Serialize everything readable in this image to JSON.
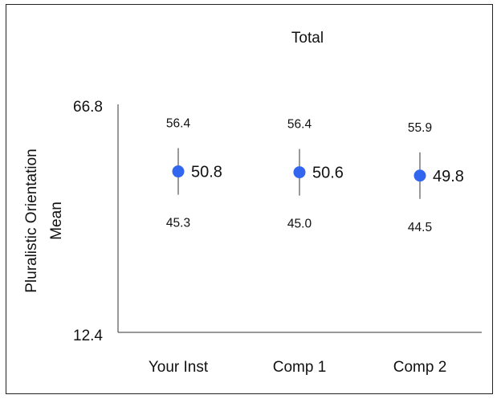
{
  "chart_data": {
    "type": "scatter",
    "title": "Total",
    "ylabel_line1": "Pluralistic Orientation",
    "ylabel_line2": "Mean",
    "ylim": [
      12.4,
      66.8
    ],
    "ytick_labels": [
      "66.8",
      "12.4"
    ],
    "categories": [
      "Your Inst",
      "Comp 1",
      "Comp 2"
    ],
    "points": [
      {
        "category": "Your Inst",
        "mean": 50.8,
        "upper": 56.4,
        "lower": 45.3,
        "mean_label": "50.8",
        "upper_label": "56.4",
        "lower_label": "45.3"
      },
      {
        "category": "Comp 1",
        "mean": 50.6,
        "upper": 56.4,
        "lower": 45.0,
        "mean_label": "50.6",
        "upper_label": "56.4",
        "lower_label": "45.0"
      },
      {
        "category": "Comp 2",
        "mean": 49.8,
        "upper": 55.9,
        "lower": 44.5,
        "mean_label": "49.8",
        "upper_label": "55.9",
        "lower_label": "44.5"
      }
    ],
    "marker_color": "#3366ee",
    "errorbar_color": "#333333",
    "grid": false
  }
}
